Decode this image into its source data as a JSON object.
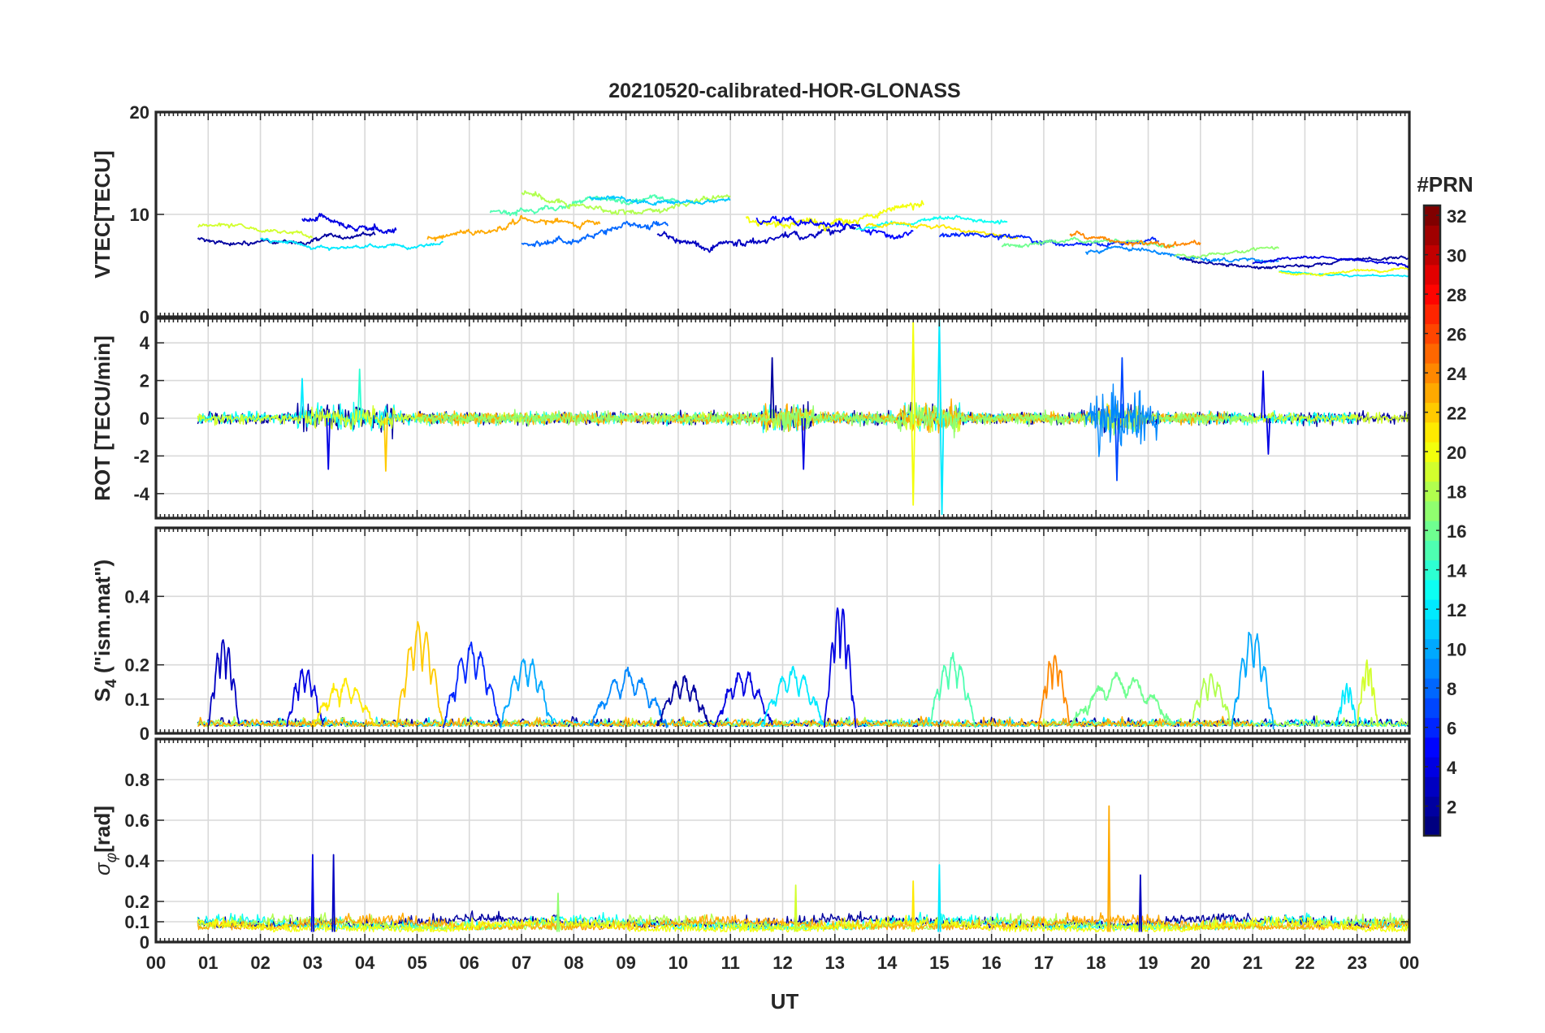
{
  "chart_data": {
    "type": "line",
    "title": "20210520-calibrated-HOR-GLONASS",
    "xlabel": "UT",
    "x_ticks": [
      "00",
      "01",
      "02",
      "03",
      "04",
      "05",
      "06",
      "07",
      "08",
      "09",
      "10",
      "11",
      "12",
      "13",
      "14",
      "15",
      "16",
      "17",
      "18",
      "19",
      "20",
      "21",
      "22",
      "23",
      "00"
    ],
    "x_range_hours": [
      0,
      24
    ],
    "grid": true,
    "colorbar": {
      "title": "#PRN",
      "range": [
        1,
        32
      ],
      "ticks": [
        2,
        4,
        6,
        8,
        10,
        12,
        14,
        16,
        18,
        20,
        22,
        24,
        26,
        28,
        30,
        32
      ],
      "colormap": "jet",
      "placement": "right"
    },
    "panels": [
      {
        "key": "vtec",
        "ylabel": "VTEC[TECU]",
        "ylim": [
          0,
          20
        ],
        "yticks": [
          0,
          10,
          20
        ],
        "yticklabels": [
          "0",
          "10",
          "20"
        ],
        "series": [
          {
            "prn": 2,
            "start": 0.8,
            "end": 4.2,
            "base": 7.6,
            "amp": 0.9
          },
          {
            "prn": 4,
            "start": 2.8,
            "end": 4.6,
            "base": 8.6,
            "amp": 1.5
          },
          {
            "prn": 3,
            "start": 9.6,
            "end": 13.4,
            "base": 7.8,
            "amp": 1.6
          },
          {
            "prn": 8,
            "start": 7.0,
            "end": 9.8,
            "base": 8.0,
            "amp": 1.4
          },
          {
            "prn": 12,
            "start": 2.0,
            "end": 5.5,
            "base": 7.2,
            "amp": 0.8
          },
          {
            "prn": 19,
            "start": 0.8,
            "end": 3.0,
            "base": 8.3,
            "amp": 0.8
          },
          {
            "prn": 23,
            "start": 5.2,
            "end": 8.5,
            "base": 8.5,
            "amp": 1.3
          },
          {
            "prn": 15,
            "start": 6.4,
            "end": 10.0,
            "base": 11.0,
            "amp": 1.2
          },
          {
            "prn": 18,
            "start": 7.0,
            "end": 11.0,
            "base": 11.2,
            "amp": 1.3
          },
          {
            "prn": 11,
            "start": 8.3,
            "end": 11.0,
            "base": 11.6,
            "amp": 1.0
          },
          {
            "prn": 20,
            "start": 11.3,
            "end": 14.7,
            "base": 10.0,
            "amp": 1.8
          },
          {
            "prn": 5,
            "start": 11.5,
            "end": 14.5,
            "base": 8.8,
            "amp": 1.5
          },
          {
            "prn": 13,
            "start": 13.4,
            "end": 16.3,
            "base": 9.0,
            "amp": 0.9
          },
          {
            "prn": 21,
            "start": 13.6,
            "end": 16.5,
            "base": 8.5,
            "amp": 0.8
          },
          {
            "prn": 6,
            "start": 15.0,
            "end": 19.2,
            "base": 7.6,
            "amp": 1.0
          },
          {
            "prn": 16,
            "start": 16.2,
            "end": 19.5,
            "base": 7.2,
            "amp": 0.8
          },
          {
            "prn": 24,
            "start": 17.5,
            "end": 20.0,
            "base": 7.8,
            "amp": 1.2
          },
          {
            "prn": 9,
            "start": 17.8,
            "end": 21.5,
            "base": 6.0,
            "amp": 0.9
          },
          {
            "prn": 17,
            "start": 19.5,
            "end": 21.5,
            "base": 6.4,
            "amp": 0.7
          },
          {
            "prn": 2,
            "start": 19.6,
            "end": 24.0,
            "base": 5.4,
            "amp": 0.7
          },
          {
            "prn": 12,
            "start": 21.5,
            "end": 24.0,
            "base": 4.2,
            "amp": 0.4
          },
          {
            "prn": 20,
            "start": 21.5,
            "end": 24.0,
            "base": 4.5,
            "amp": 0.5
          },
          {
            "prn": 4,
            "start": 21.0,
            "end": 24.0,
            "base": 5.3,
            "amp": 0.6
          }
        ]
      },
      {
        "key": "rot",
        "ylabel": "ROT [TECU/min]",
        "ylim": [
          -5.3,
          5.3
        ],
        "yticks": [
          -4,
          -2,
          0,
          2,
          4
        ],
        "yticklabels": [
          "-4",
          "-2",
          "0",
          "2",
          "4"
        ],
        "series": [
          {
            "prn": 2,
            "start": 0.8,
            "end": 24.0,
            "base": 0,
            "amp": 0.3
          },
          {
            "prn": 13,
            "start": 0.8,
            "end": 23.0,
            "base": 0,
            "amp": 0.3
          },
          {
            "prn": 19,
            "start": 0.8,
            "end": 24.0,
            "base": 0,
            "amp": 0.25
          },
          {
            "prn": 23,
            "start": 5.0,
            "end": 20.5,
            "base": 0,
            "amp": 0.3
          },
          {
            "prn": 17,
            "start": 5.0,
            "end": 21.0,
            "base": 0,
            "amp": 0.3
          },
          {
            "prn": 9,
            "start": 17.8,
            "end": 19.2,
            "base": 0,
            "amp": 0.8
          }
        ],
        "spikes": [
          {
            "prn": 4,
            "t": 3.3,
            "value": -2.7
          },
          {
            "prn": 12,
            "t": 2.8,
            "value": 2.1
          },
          {
            "prn": 22,
            "t": 4.4,
            "value": -2.8
          },
          {
            "prn": 14,
            "t": 3.9,
            "value": 2.6
          },
          {
            "prn": 2,
            "t": 11.8,
            "value": 3.2
          },
          {
            "prn": 4,
            "t": 12.4,
            "value": -2.7
          },
          {
            "prn": 20,
            "t": 14.5,
            "value": 5.1
          },
          {
            "prn": 20,
            "t": 14.5,
            "value": -4.6
          },
          {
            "prn": 12,
            "t": 15.0,
            "value": 5.3
          },
          {
            "prn": 12,
            "t": 15.05,
            "value": -5.1
          },
          {
            "prn": 7,
            "t": 18.5,
            "value": 3.2
          },
          {
            "prn": 7,
            "t": 18.4,
            "value": -3.3
          },
          {
            "prn": 4,
            "t": 21.2,
            "value": 2.5
          },
          {
            "prn": 4,
            "t": 21.3,
            "value": -1.9
          }
        ]
      },
      {
        "key": "s4",
        "ylabel": "S4 (\"ism.mat\")",
        "ylim": [
          0,
          0.6
        ],
        "yticks": [
          0,
          0.1,
          0.2,
          0.4
        ],
        "yticklabels": [
          "0",
          "0.1",
          "0.2",
          "0.4"
        ],
        "baseline_series": [
          {
            "prn": 2,
            "start": 0.8,
            "end": 24.0,
            "base": 0.02
          },
          {
            "prn": 12,
            "start": 0.8,
            "end": 24.0,
            "base": 0.02
          },
          {
            "prn": 18,
            "start": 0.8,
            "end": 24.0,
            "base": 0.02
          },
          {
            "prn": 23,
            "start": 0.8,
            "end": 21.0,
            "base": 0.02
          }
        ],
        "bursts": [
          {
            "prn": 3,
            "start": 1.0,
            "end": 1.6,
            "peak": 0.28
          },
          {
            "prn": 4,
            "start": 2.5,
            "end": 3.2,
            "peak": 0.19
          },
          {
            "prn": 21,
            "start": 3.0,
            "end": 4.2,
            "peak": 0.15
          },
          {
            "prn": 22,
            "start": 4.6,
            "end": 5.5,
            "peak": 0.32
          },
          {
            "prn": 6,
            "start": 5.5,
            "end": 6.6,
            "peak": 0.26
          },
          {
            "prn": 10,
            "start": 6.6,
            "end": 7.6,
            "peak": 0.22
          },
          {
            "prn": 9,
            "start": 8.3,
            "end": 9.8,
            "peak": 0.18
          },
          {
            "prn": 2,
            "start": 9.6,
            "end": 10.6,
            "peak": 0.16
          },
          {
            "prn": 4,
            "start": 10.7,
            "end": 11.8,
            "peak": 0.18
          },
          {
            "prn": 12,
            "start": 11.6,
            "end": 12.8,
            "peak": 0.19
          },
          {
            "prn": 4,
            "start": 12.8,
            "end": 13.4,
            "peak": 0.38
          },
          {
            "prn": 15,
            "start": 14.8,
            "end": 15.7,
            "peak": 0.23
          },
          {
            "prn": 24,
            "start": 16.9,
            "end": 17.5,
            "peak": 0.23
          },
          {
            "prn": 16,
            "start": 17.5,
            "end": 19.5,
            "peak": 0.17
          },
          {
            "prn": 18,
            "start": 19.8,
            "end": 20.6,
            "peak": 0.17
          },
          {
            "prn": 10,
            "start": 20.6,
            "end": 21.4,
            "peak": 0.3
          },
          {
            "prn": 12,
            "start": 22.6,
            "end": 23.0,
            "peak": 0.14
          },
          {
            "prn": 19,
            "start": 23.0,
            "end": 23.4,
            "peak": 0.21
          }
        ]
      },
      {
        "key": "sigphi",
        "ylabel": "σφ[rad]",
        "ylim": [
          0,
          1.0
        ],
        "yticks": [
          0,
          0.1,
          0.2,
          0.4,
          0.6,
          0.8
        ],
        "yticklabels": [
          "0",
          "0.1",
          "0.2",
          "0.4",
          "0.6",
          "0.8"
        ],
        "baseline_series": [
          {
            "prn": 2,
            "start": 0.8,
            "end": 24.0,
            "base": 0.07
          },
          {
            "prn": 13,
            "start": 0.8,
            "end": 24.0,
            "base": 0.06
          },
          {
            "prn": 18,
            "start": 0.8,
            "end": 24.0,
            "base": 0.06
          },
          {
            "prn": 23,
            "start": 0.8,
            "end": 24.0,
            "base": 0.06
          },
          {
            "prn": 20,
            "start": 0.8,
            "end": 24.0,
            "base": 0.05
          }
        ],
        "spikes": [
          {
            "prn": 4,
            "t": 3.0,
            "value": 0.43
          },
          {
            "prn": 3,
            "t": 3.4,
            "value": 0.43
          },
          {
            "prn": 19,
            "t": 12.25,
            "value": 0.28
          },
          {
            "prn": 21,
            "t": 14.5,
            "value": 0.3
          },
          {
            "prn": 12,
            "t": 15.0,
            "value": 0.38
          },
          {
            "prn": 23,
            "t": 18.25,
            "value": 0.67
          },
          {
            "prn": 3,
            "t": 18.85,
            "value": 0.33
          },
          {
            "prn": 17,
            "t": 7.7,
            "value": 0.24
          }
        ]
      }
    ]
  }
}
